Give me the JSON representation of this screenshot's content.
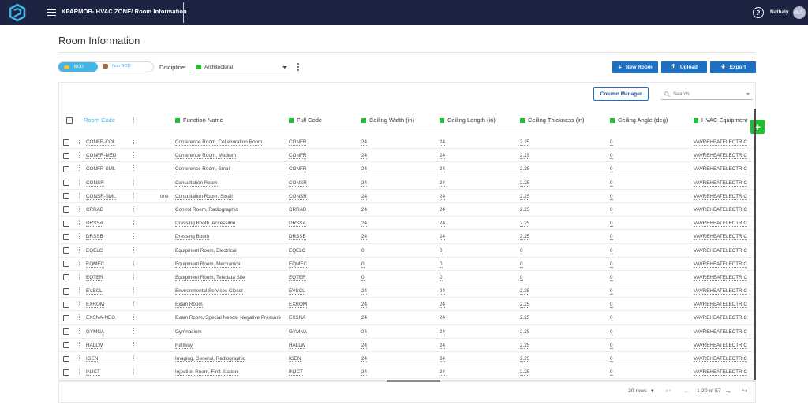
{
  "topbar": {
    "title": "KPARMOB- HVAC ZONE/ Room Information",
    "user_name": "Nathaly",
    "avatar_initials": "NA",
    "help_glyph": "?"
  },
  "page": {
    "title": "Room Information"
  },
  "toolbar": {
    "bod_label": "BOD",
    "non_bod_label": "Non BOD",
    "discipline_label": "Discipline:",
    "discipline_value": "Architectural",
    "new_room_label": "New Room",
    "upload_label": "Upload",
    "export_label": "Export",
    "column_manager_label": "Column Manager",
    "search_placeholder": "Search"
  },
  "colors": {
    "topbar_bg": "#1c2442",
    "accent_blue": "#1c6fc1",
    "toggle_active": "#3fb6e8",
    "discipline_green": "#1fbf2f"
  },
  "columns": [
    "Room Code",
    "Function Name",
    "Full Code",
    "Ceiling Width (in)",
    "Ceiling Length (in)",
    "Ceiling Thickness (in)",
    "Ceiling Angle (deg)",
    "HVAC Equipment"
  ],
  "rows": [
    {
      "room_code": "CONFR-COL",
      "note": "",
      "function_name": "Conference Room, Collaboration Room",
      "full_code": "CONFR",
      "width": "24",
      "length": "24",
      "thickness": "2.25",
      "angle": "0",
      "hvac": "VAVREHEATELECTRIC"
    },
    {
      "room_code": "CONFR-MED",
      "note": "",
      "function_name": "Conference Room, Medium",
      "full_code": "CONFR",
      "width": "24",
      "length": "24",
      "thickness": "2.25",
      "angle": "0",
      "hvac": "VAVREHEATELECTRIC"
    },
    {
      "room_code": "CONFR-SML",
      "note": "",
      "function_name": "Conference Room, Small",
      "full_code": "CONFR",
      "width": "24",
      "length": "24",
      "thickness": "2.25",
      "angle": "0",
      "hvac": "VAVREHEATELECTRIC"
    },
    {
      "room_code": "CONSR",
      "note": "",
      "function_name": "Consultation Room",
      "full_code": "CONSR",
      "width": "24",
      "length": "24",
      "thickness": "2.25",
      "angle": "0",
      "hvac": "VAVREHEATELECTRIC"
    },
    {
      "room_code": "CONSR-SML",
      "note": "one",
      "function_name": "Consultation Room, Small",
      "full_code": "CONSR",
      "width": "24",
      "length": "24",
      "thickness": "2.25",
      "angle": "0",
      "hvac": "VAVREHEATELECTRIC"
    },
    {
      "room_code": "CRRAD",
      "note": "",
      "function_name": "Control Room, Radiographic",
      "full_code": "CRRAD",
      "width": "24",
      "length": "24",
      "thickness": "2.25",
      "angle": "0",
      "hvac": "VAVREHEATELECTRIC"
    },
    {
      "room_code": "DRSSA",
      "note": "",
      "function_name": "Dressing Booth, Accessible",
      "full_code": "DRSSA",
      "width": "24",
      "length": "24",
      "thickness": "2.25",
      "angle": "0",
      "hvac": "VAVREHEATELECTRIC"
    },
    {
      "room_code": "DRSSB",
      "note": "",
      "function_name": "Dressing Booth",
      "full_code": "DRSSB",
      "width": "24",
      "length": "24",
      "thickness": "2.25",
      "angle": "0",
      "hvac": "VAVREHEATELECTRIC"
    },
    {
      "room_code": "EQELC",
      "note": "",
      "function_name": "Equipment Room, Electrical",
      "full_code": "EQELC",
      "width": "0",
      "length": "0",
      "thickness": "0",
      "angle": "0",
      "hvac": "VAVREHEATELECTRIC"
    },
    {
      "room_code": "EQMEC",
      "note": "",
      "function_name": "Equipment Room, Mechanical",
      "full_code": "EQMEC",
      "width": "0",
      "length": "0",
      "thickness": "0",
      "angle": "0",
      "hvac": "VAVREHEATELECTRIC"
    },
    {
      "room_code": "EQTER",
      "note": "",
      "function_name": "Equipment Room, Teledata Site",
      "full_code": "EQTER",
      "width": "0",
      "length": "0",
      "thickness": "0",
      "angle": "0",
      "hvac": "VAVREHEATELECTRIC"
    },
    {
      "room_code": "EVSCL",
      "note": "",
      "function_name": "Environmental Services Closet",
      "full_code": "EVSCL",
      "width": "24",
      "length": "24",
      "thickness": "2.25",
      "angle": "0",
      "hvac": "VAVREHEATELECTRIC"
    },
    {
      "room_code": "EXROM",
      "note": "",
      "function_name": "Exam Room",
      "full_code": "EXROM",
      "width": "24",
      "length": "24",
      "thickness": "2.25",
      "angle": "0",
      "hvac": "VAVREHEATELECTRIC"
    },
    {
      "room_code": "EXSNA-NEG",
      "note": "",
      "function_name": "Exam Room, Special Needs, Negative Pressure",
      "full_code": "EXSNA",
      "width": "24",
      "length": "24",
      "thickness": "2.25",
      "angle": "0",
      "hvac": "VAVREHEATELECTRIC"
    },
    {
      "room_code": "GYMNA",
      "note": "",
      "function_name": "Gymnasium",
      "full_code": "GYMNA",
      "width": "24",
      "length": "24",
      "thickness": "2.25",
      "angle": "0",
      "hvac": "VAVREHEATELECTRIC"
    },
    {
      "room_code": "HALLW",
      "note": "",
      "function_name": "Hallway",
      "full_code": "HALLW",
      "width": "24",
      "length": "24",
      "thickness": "2.25",
      "angle": "0",
      "hvac": "VAVREHEATELECTRIC"
    },
    {
      "room_code": "IGEN",
      "note": "",
      "function_name": "Imaging, General, Radiographic",
      "full_code": "IGEN",
      "width": "24",
      "length": "24",
      "thickness": "2.25",
      "angle": "0",
      "hvac": "VAVREHEATELECTRIC"
    },
    {
      "room_code": "INJCT",
      "note": "",
      "function_name": "Injection Room, First Station",
      "full_code": "INJCT",
      "width": "24",
      "length": "24",
      "thickness": "2.25",
      "angle": "0",
      "hvac": "VAVREHEATELECTRIC"
    }
  ],
  "pagination": {
    "page_size": "20 rows",
    "range": "1-20 of 57"
  },
  "icons": {
    "logo": "app-logo-icon",
    "menu": "hamburger-icon",
    "help": "help-icon",
    "add": "plus-icon",
    "upload": "upload-icon",
    "export": "export-icon",
    "search": "search-icon"
  }
}
